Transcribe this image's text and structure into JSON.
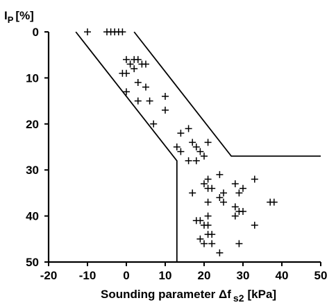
{
  "chart_data": {
    "type": "scatter",
    "title": "",
    "xlabel": "Sounding parameter Δf",
    "xlabel_sub": "s2",
    "xlabel_unit": "[kPa]",
    "ylabel": "I",
    "ylabel_sub": "P",
    "ylabel_unit": "[%]",
    "xlim": [
      -20,
      50
    ],
    "ylim": [
      0,
      50
    ],
    "y_inverted": true,
    "x_ticks": [
      -20,
      -10,
      0,
      10,
      20,
      30,
      40,
      50
    ],
    "x_tick_labels": [
      "-20",
      "-10",
      "0",
      "10",
      "20",
      "30",
      "40",
      "50"
    ],
    "y_ticks": [
      0,
      10,
      20,
      30,
      40,
      50
    ],
    "y_tick_labels": [
      "0",
      "10",
      "20",
      "30",
      "40",
      "50"
    ],
    "grid": false,
    "marker": "plus",
    "color": "#000000",
    "boundary_left": [
      [
        -13,
        0
      ],
      [
        13,
        28
      ],
      [
        13,
        50
      ]
    ],
    "boundary_right": [
      [
        2,
        0
      ],
      [
        27,
        27
      ],
      [
        50,
        27
      ]
    ],
    "points": [
      [
        -10,
        0
      ],
      [
        -5,
        0
      ],
      [
        -4,
        0
      ],
      [
        -3,
        0
      ],
      [
        -2,
        0
      ],
      [
        -1,
        0
      ],
      [
        0,
        6
      ],
      [
        1,
        7
      ],
      [
        2,
        6
      ],
      [
        3,
        6
      ],
      [
        4,
        7
      ],
      [
        5,
        7
      ],
      [
        2,
        8
      ],
      [
        0,
        9
      ],
      [
        -1,
        9
      ],
      [
        3,
        11
      ],
      [
        0,
        13
      ],
      [
        5,
        12
      ],
      [
        3,
        15
      ],
      [
        6,
        15
      ],
      [
        10,
        14
      ],
      [
        7,
        20
      ],
      [
        10,
        17
      ],
      [
        14,
        22
      ],
      [
        16,
        21
      ],
      [
        13,
        25
      ],
      [
        14,
        26
      ],
      [
        17,
        24
      ],
      [
        18,
        25
      ],
      [
        19,
        26
      ],
      [
        16,
        28
      ],
      [
        18,
        28
      ],
      [
        20,
        27
      ],
      [
        21,
        24
      ],
      [
        20,
        33
      ],
      [
        21,
        32
      ],
      [
        21,
        34
      ],
      [
        22,
        34
      ],
      [
        24,
        31
      ],
      [
        17,
        35
      ],
      [
        24,
        36
      ],
      [
        25,
        35
      ],
      [
        25,
        37
      ],
      [
        21,
        37
      ],
      [
        28,
        33
      ],
      [
        29,
        35
      ],
      [
        30,
        34
      ],
      [
        33,
        32
      ],
      [
        28,
        38
      ],
      [
        29,
        39
      ],
      [
        28,
        40
      ],
      [
        30,
        39
      ],
      [
        37,
        37
      ],
      [
        38,
        37
      ],
      [
        21,
        40
      ],
      [
        18,
        41
      ],
      [
        19,
        41
      ],
      [
        20,
        42
      ],
      [
        21,
        42
      ],
      [
        22,
        44
      ],
      [
        21,
        44
      ],
      [
        19,
        45
      ],
      [
        20,
        46
      ],
      [
        22,
        46
      ],
      [
        24,
        48
      ],
      [
        29,
        46
      ],
      [
        33,
        42
      ]
    ]
  }
}
